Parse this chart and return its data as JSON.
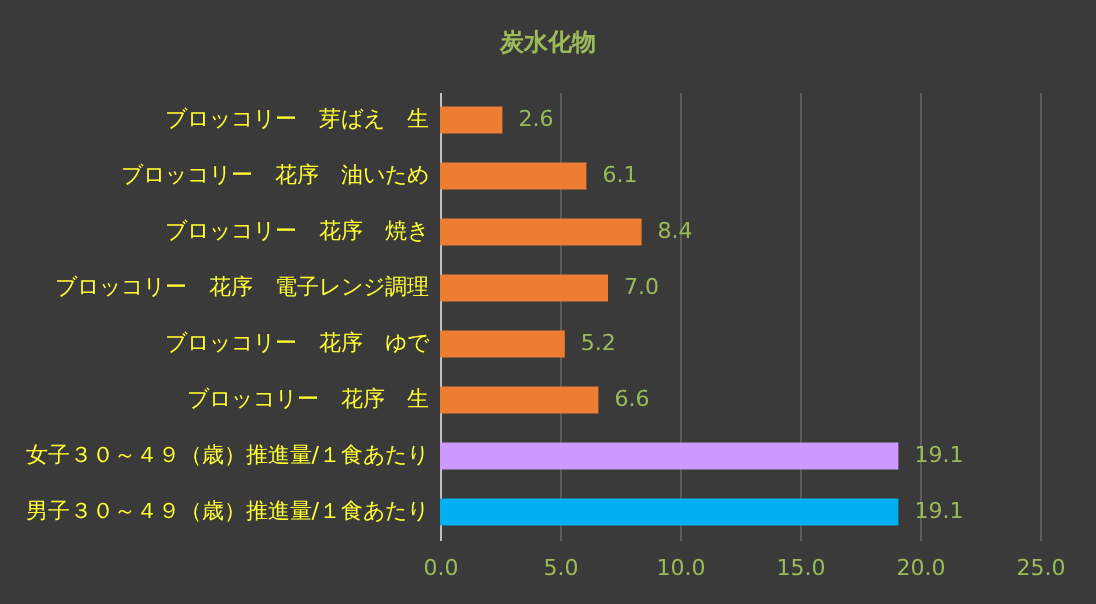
{
  "chart_data": {
    "type": "bar",
    "orientation": "horizontal",
    "title": "炭水化物",
    "categories": [
      "ブロッコリー　芽ばえ　生",
      "ブロッコリー　花序　油いため",
      "ブロッコリー　花序　焼き",
      "ブロッコリー　花序　電子レンジ調理",
      "ブロッコリー　花序　ゆで",
      "ブロッコリー　花序　生",
      "女子３０～４９（歳）推進量/１食あたり",
      "男子３０～４９（歳）推進量/１食あたり"
    ],
    "values": [
      2.6,
      6.1,
      8.4,
      7.0,
      5.2,
      6.6,
      19.1,
      19.1
    ],
    "colors": [
      "#ed7d31",
      "#ed7d31",
      "#ed7d31",
      "#ed7d31",
      "#ed7d31",
      "#ed7d31",
      "#cc99ff",
      "#00b0f0"
    ],
    "value_labels": [
      "2.6",
      "6.1",
      "8.4",
      "7.0",
      "5.2",
      "6.6",
      "19.1",
      "19.1"
    ],
    "xlim": [
      0,
      25
    ],
    "xticks": [
      {
        "value": 0,
        "label": "0.0"
      },
      {
        "value": 5,
        "label": "5.0"
      },
      {
        "value": 10,
        "label": "10.0"
      },
      {
        "value": 15,
        "label": "15.0"
      },
      {
        "value": 20,
        "label": "20.0"
      },
      {
        "value": 25,
        "label": "25.0"
      }
    ],
    "grid": "x"
  }
}
